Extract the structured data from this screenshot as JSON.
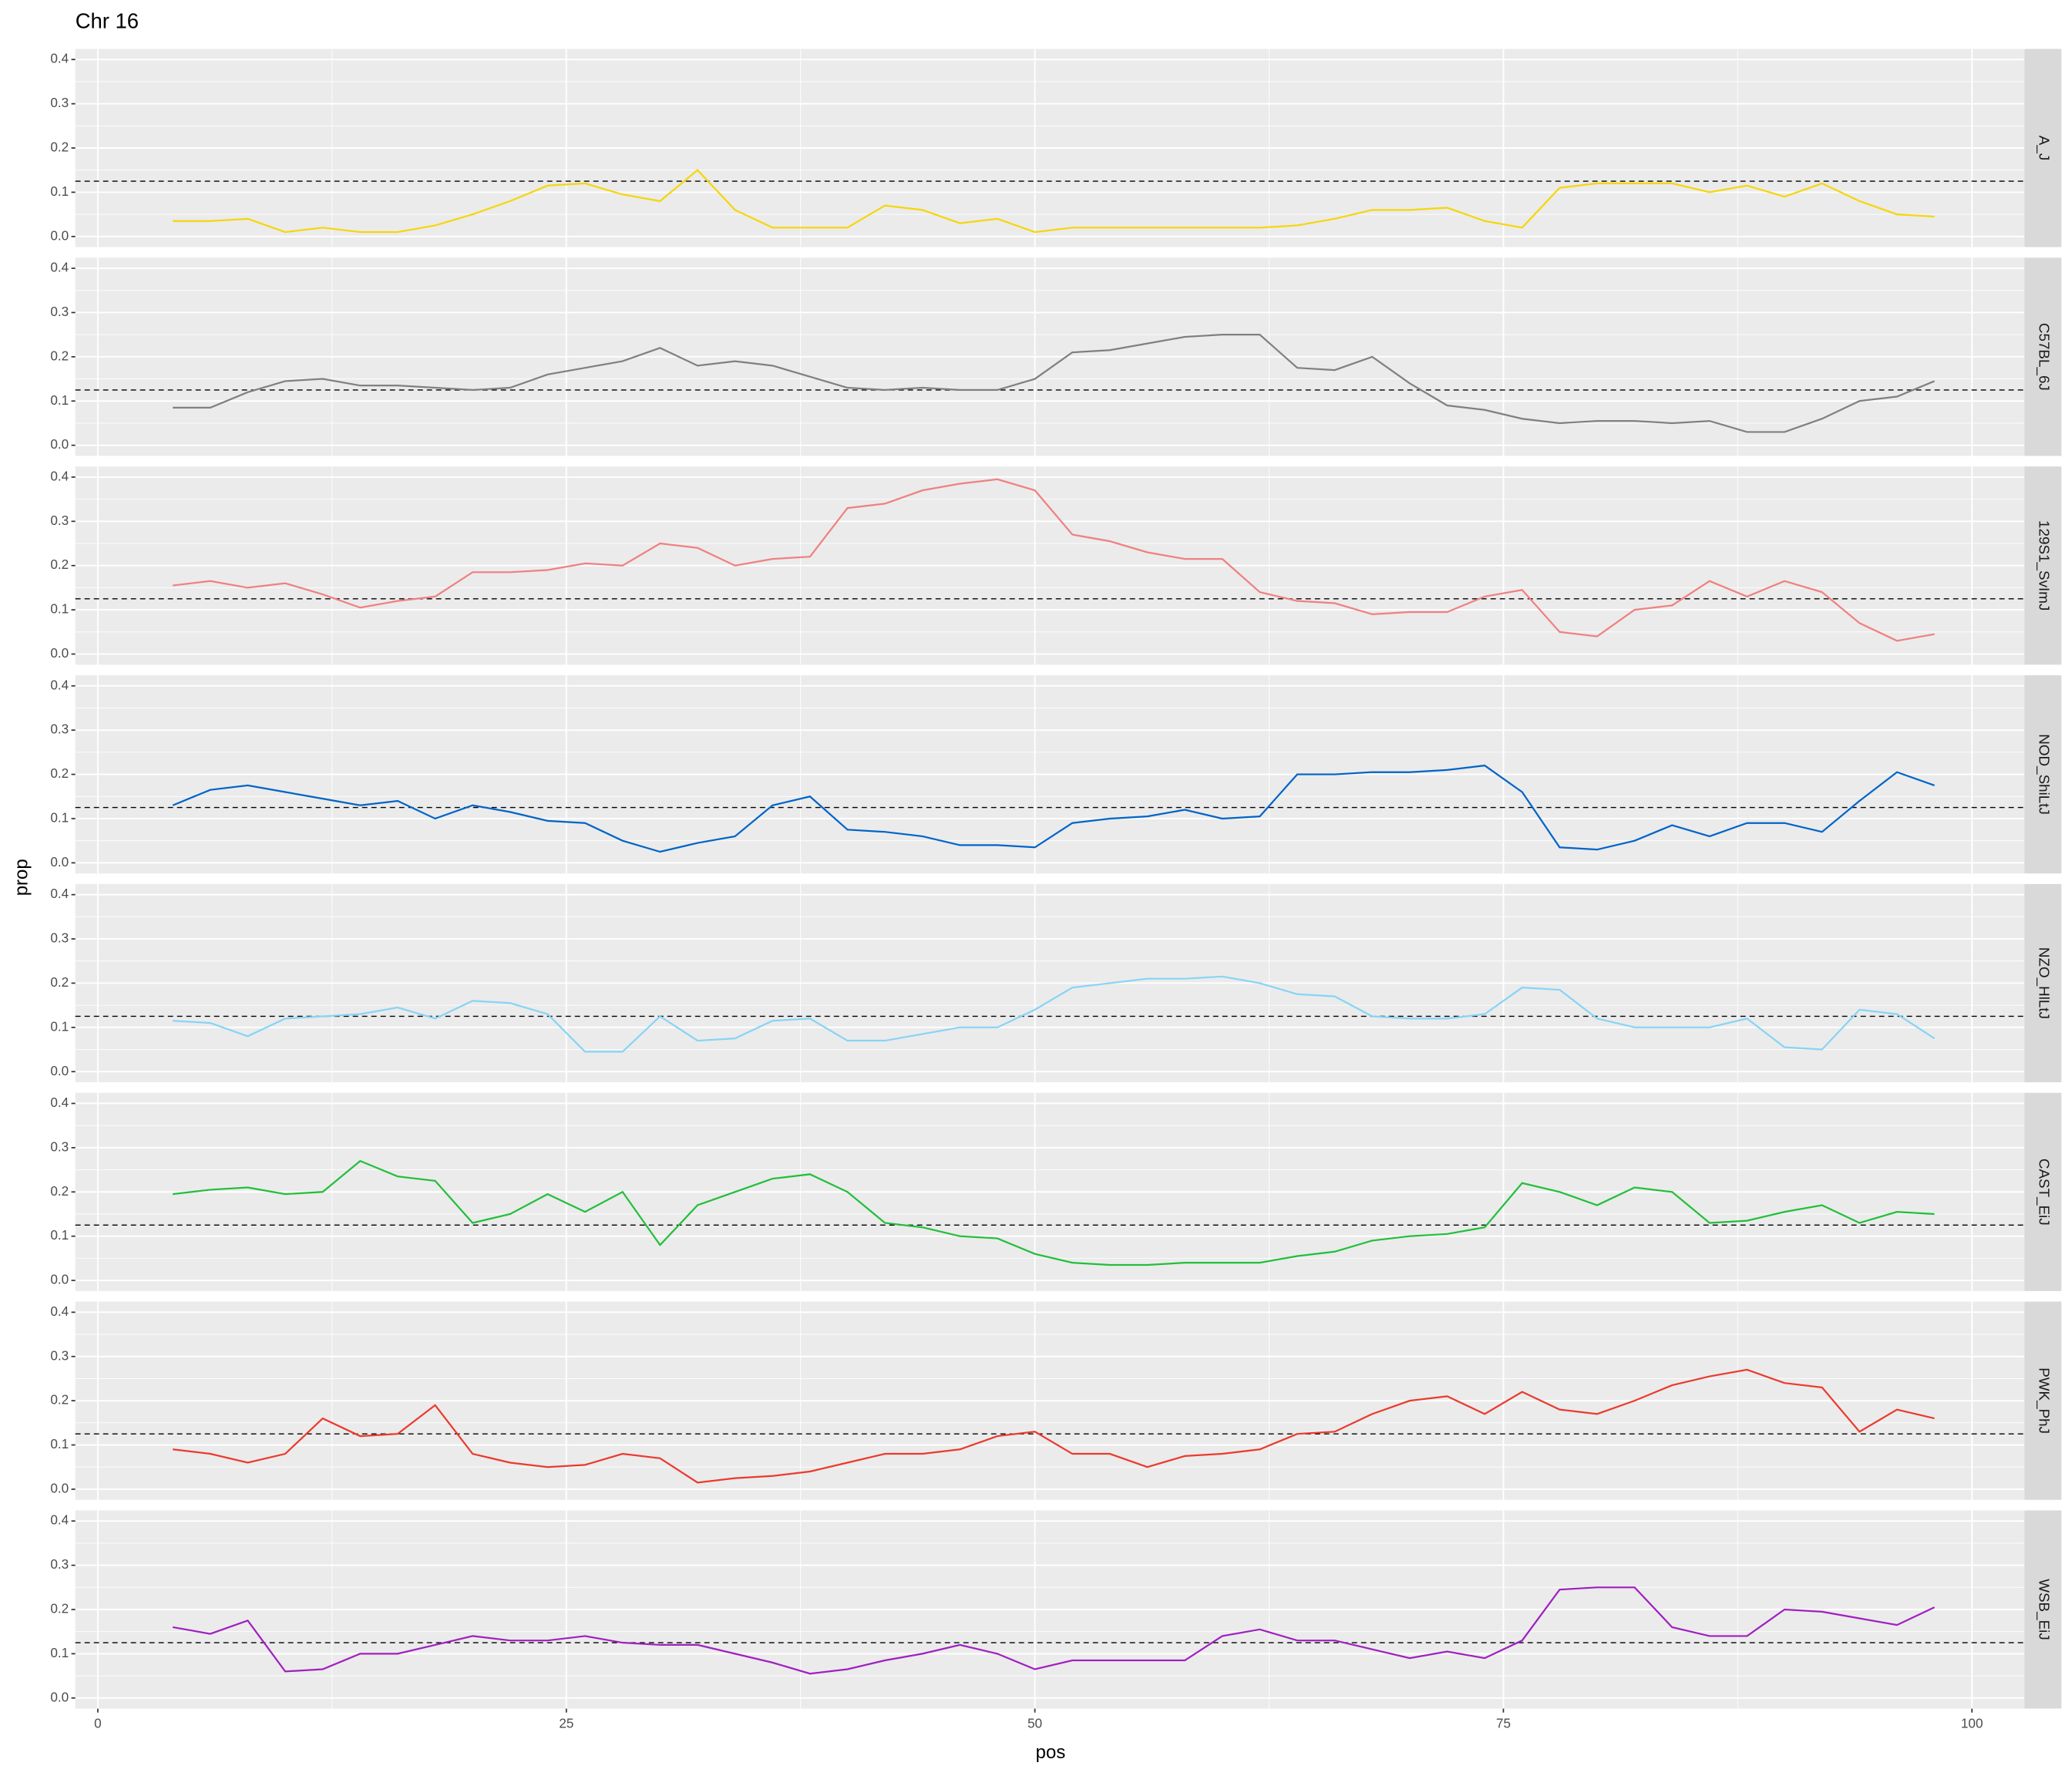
{
  "chart_data": {
    "type": "line",
    "title": "Chr 16",
    "x_label": "pos",
    "y_label": "prop",
    "xlim": [
      -1.2,
      102.8
    ],
    "xticks": [
      0,
      25,
      50,
      75,
      100
    ],
    "ylim": [
      -0.024,
      0.424
    ],
    "yticks": [
      {
        "value": 0,
        "label": "0.0"
      },
      {
        "value": 0.1,
        "label": "0.1"
      },
      {
        "value": 0.2,
        "label": "0.2"
      },
      {
        "value": 0.3,
        "label": "0.3"
      },
      {
        "value": 0.4,
        "label": "0.4"
      }
    ],
    "hline": 0.125,
    "grid": true,
    "x": [
      4,
      6,
      8,
      10,
      12,
      14,
      16,
      18,
      20,
      22,
      24,
      26,
      28,
      30,
      32,
      34,
      36,
      38,
      40,
      42,
      44,
      46,
      48,
      50,
      52,
      54,
      56,
      58,
      60,
      62,
      64,
      66,
      68,
      70,
      72,
      74,
      76,
      78,
      80,
      82,
      84,
      86,
      88,
      90,
      92,
      94,
      96,
      98
    ],
    "series": [
      {
        "name": "A_J",
        "color": "#f5d60a",
        "values": [
          0.035,
          0.035,
          0.04,
          0.01,
          0.02,
          0.01,
          0.01,
          0.025,
          0.05,
          0.08,
          0.115,
          0.12,
          0.095,
          0.08,
          0.15,
          0.06,
          0.02,
          0.02,
          0.02,
          0.07,
          0.06,
          0.03,
          0.04,
          0.01,
          0.02,
          0.02,
          0.02,
          0.02,
          0.02,
          0.02,
          0.025,
          0.04,
          0.06,
          0.06,
          0.065,
          0.035,
          0.02,
          0.11,
          0.12,
          0.12,
          0.12,
          0.1,
          0.115,
          0.09,
          0.12,
          0.08,
          0.05,
          0.045
        ]
      },
      {
        "name": "C57BL_6J",
        "color": "#808080",
        "values": [
          0.085,
          0.085,
          0.12,
          0.145,
          0.15,
          0.135,
          0.135,
          0.13,
          0.125,
          0.13,
          0.16,
          0.175,
          0.19,
          0.22,
          0.18,
          0.19,
          0.18,
          0.155,
          0.13,
          0.125,
          0.13,
          0.125,
          0.125,
          0.15,
          0.21,
          0.215,
          0.23,
          0.245,
          0.25,
          0.25,
          0.175,
          0.17,
          0.2,
          0.14,
          0.09,
          0.08,
          0.06,
          0.05,
          0.055,
          0.055,
          0.05,
          0.055,
          0.03,
          0.03,
          0.06,
          0.1,
          0.11,
          0.145
        ]
      },
      {
        "name": "129S1_SvImJ",
        "color": "#f08080",
        "values": [
          0.155,
          0.165,
          0.15,
          0.16,
          0.135,
          0.105,
          0.12,
          0.13,
          0.185,
          0.185,
          0.19,
          0.205,
          0.2,
          0.25,
          0.24,
          0.2,
          0.215,
          0.22,
          0.33,
          0.34,
          0.37,
          0.385,
          0.395,
          0.37,
          0.27,
          0.255,
          0.23,
          0.215,
          0.215,
          0.14,
          0.12,
          0.115,
          0.09,
          0.095,
          0.095,
          0.13,
          0.145,
          0.05,
          0.04,
          0.1,
          0.11,
          0.165,
          0.13,
          0.165,
          0.14,
          0.07,
          0.03,
          0.045
        ]
      },
      {
        "name": "NOD_ShiLtJ",
        "color": "#0064c8",
        "values": [
          0.13,
          0.165,
          0.175,
          0.16,
          0.145,
          0.13,
          0.14,
          0.1,
          0.13,
          0.115,
          0.095,
          0.09,
          0.05,
          0.025,
          0.045,
          0.06,
          0.13,
          0.15,
          0.075,
          0.07,
          0.06,
          0.04,
          0.04,
          0.035,
          0.09,
          0.1,
          0.105,
          0.12,
          0.1,
          0.105,
          0.2,
          0.2,
          0.205,
          0.205,
          0.21,
          0.22,
          0.16,
          0.035,
          0.03,
          0.05,
          0.085,
          0.06,
          0.09,
          0.09,
          0.07,
          0.14,
          0.205,
          0.175
        ]
      },
      {
        "name": "NZO_HlLtJ",
        "color": "#87d4f5",
        "values": [
          0.115,
          0.11,
          0.08,
          0.12,
          0.125,
          0.13,
          0.145,
          0.12,
          0.16,
          0.155,
          0.13,
          0.045,
          0.045,
          0.125,
          0.07,
          0.075,
          0.115,
          0.12,
          0.07,
          0.07,
          0.085,
          0.1,
          0.1,
          0.14,
          0.19,
          0.2,
          0.21,
          0.21,
          0.215,
          0.2,
          0.175,
          0.17,
          0.125,
          0.12,
          0.12,
          0.13,
          0.19,
          0.185,
          0.12,
          0.1,
          0.1,
          0.1,
          0.12,
          0.055,
          0.05,
          0.14,
          0.13,
          0.075
        ]
      },
      {
        "name": "CAST_EiJ",
        "color": "#21bf3a",
        "values": [
          0.195,
          0.205,
          0.21,
          0.195,
          0.2,
          0.27,
          0.235,
          0.225,
          0.13,
          0.15,
          0.195,
          0.155,
          0.2,
          0.08,
          0.17,
          0.2,
          0.23,
          0.24,
          0.2,
          0.13,
          0.12,
          0.1,
          0.095,
          0.06,
          0.04,
          0.035,
          0.035,
          0.04,
          0.04,
          0.04,
          0.055,
          0.065,
          0.09,
          0.1,
          0.105,
          0.12,
          0.22,
          0.2,
          0.17,
          0.21,
          0.2,
          0.13,
          0.135,
          0.155,
          0.17,
          0.13,
          0.155,
          0.15
        ]
      },
      {
        "name": "PWK_PhJ",
        "color": "#eb3a2e",
        "values": [
          0.09,
          0.08,
          0.06,
          0.08,
          0.16,
          0.12,
          0.125,
          0.19,
          0.08,
          0.06,
          0.05,
          0.055,
          0.08,
          0.07,
          0.015,
          0.025,
          0.03,
          0.04,
          0.06,
          0.08,
          0.08,
          0.09,
          0.12,
          0.13,
          0.08,
          0.08,
          0.05,
          0.075,
          0.08,
          0.09,
          0.125,
          0.13,
          0.17,
          0.2,
          0.21,
          0.17,
          0.22,
          0.18,
          0.17,
          0.2,
          0.235,
          0.255,
          0.27,
          0.24,
          0.23,
          0.13,
          0.18,
          0.16
        ]
      },
      {
        "name": "WSB_EiJ",
        "color": "#a020c0",
        "values": [
          0.16,
          0.145,
          0.175,
          0.06,
          0.065,
          0.1,
          0.1,
          0.12,
          0.14,
          0.13,
          0.13,
          0.14,
          0.125,
          0.12,
          0.12,
          0.1,
          0.08,
          0.055,
          0.065,
          0.085,
          0.1,
          0.12,
          0.1,
          0.065,
          0.085,
          0.085,
          0.085,
          0.085,
          0.14,
          0.155,
          0.13,
          0.13,
          0.11,
          0.09,
          0.105,
          0.09,
          0.13,
          0.245,
          0.25,
          0.25,
          0.16,
          0.14,
          0.14,
          0.2,
          0.195,
          0.18,
          0.165,
          0.205
        ]
      }
    ]
  }
}
